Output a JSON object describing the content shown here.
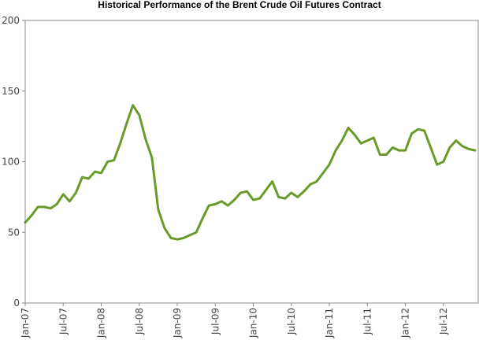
{
  "chart_data": {
    "type": "line",
    "title": "Historical Performance of the Brent Crude Oil Futures Contract",
    "xlabel": "",
    "ylabel": "",
    "ylim": [
      0,
      200
    ],
    "xlim": [
      "2007-01",
      "2012-12"
    ],
    "grid": false,
    "legend": "none",
    "y_ticks": [
      "0",
      "50",
      "100",
      "150",
      "200"
    ],
    "x_ticks": [
      {
        "label": "Jan-07",
        "date": "2007-01"
      },
      {
        "label": "Jul-07",
        "date": "2007-07"
      },
      {
        "label": "Jan-08",
        "date": "2008-01"
      },
      {
        "label": "Jul-08",
        "date": "2008-07"
      },
      {
        "label": "Jan-09",
        "date": "2009-01"
      },
      {
        "label": "Jul-09",
        "date": "2009-07"
      },
      {
        "label": "Jan-10",
        "date": "2010-01"
      },
      {
        "label": "Jul-10",
        "date": "2010-07"
      },
      {
        "label": "Jan-11",
        "date": "2011-01"
      },
      {
        "label": "Jul-11",
        "date": "2011-07"
      },
      {
        "label": "Jan-12",
        "date": "2012-01"
      },
      {
        "label": "Jul-12",
        "date": "2012-07"
      }
    ],
    "series": [
      {
        "name": "",
        "color": "#6a9a2a",
        "points": [
          [
            "2007-01",
            57
          ],
          [
            "2007-02",
            62
          ],
          [
            "2007-03",
            68
          ],
          [
            "2007-04",
            68
          ],
          [
            "2007-05",
            67
          ],
          [
            "2007-06",
            70
          ],
          [
            "2007-07",
            77
          ],
          [
            "2007-08",
            72
          ],
          [
            "2007-09",
            78
          ],
          [
            "2007-10",
            89
          ],
          [
            "2007-11",
            88
          ],
          [
            "2007-12",
            93
          ],
          [
            "2008-01",
            92
          ],
          [
            "2008-02",
            100
          ],
          [
            "2008-03",
            101
          ],
          [
            "2008-04",
            113
          ],
          [
            "2008-05",
            127
          ],
          [
            "2008-06",
            140
          ],
          [
            "2008-07",
            133
          ],
          [
            "2008-08",
            116
          ],
          [
            "2008-09",
            103
          ],
          [
            "2008-10",
            66
          ],
          [
            "2008-11",
            53
          ],
          [
            "2008-12",
            46
          ],
          [
            "2009-01",
            45
          ],
          [
            "2009-02",
            46
          ],
          [
            "2009-03",
            48
          ],
          [
            "2009-04",
            50
          ],
          [
            "2009-05",
            60
          ],
          [
            "2009-06",
            69
          ],
          [
            "2009-07",
            70
          ],
          [
            "2009-08",
            72
          ],
          [
            "2009-09",
            69
          ],
          [
            "2009-10",
            73
          ],
          [
            "2009-11",
            78
          ],
          [
            "2009-12",
            79
          ],
          [
            "2010-01",
            73
          ],
          [
            "2010-02",
            74
          ],
          [
            "2010-03",
            80
          ],
          [
            "2010-04",
            86
          ],
          [
            "2010-05",
            75
          ],
          [
            "2010-06",
            74
          ],
          [
            "2010-07",
            78
          ],
          [
            "2010-08",
            75
          ],
          [
            "2010-09",
            79
          ],
          [
            "2010-10",
            84
          ],
          [
            "2010-11",
            86
          ],
          [
            "2010-12",
            92
          ],
          [
            "2011-01",
            98
          ],
          [
            "2011-02",
            108
          ],
          [
            "2011-03",
            115
          ],
          [
            "2011-04",
            124
          ],
          [
            "2011-05",
            119
          ],
          [
            "2011-06",
            113
          ],
          [
            "2011-07",
            115
          ],
          [
            "2011-08",
            117
          ],
          [
            "2011-09",
            105
          ],
          [
            "2011-10",
            105
          ],
          [
            "2011-11",
            110
          ],
          [
            "2011-12",
            108
          ],
          [
            "2012-01",
            108
          ],
          [
            "2012-02",
            120
          ],
          [
            "2012-03",
            123
          ],
          [
            "2012-04",
            122
          ],
          [
            "2012-05",
            110
          ],
          [
            "2012-06",
            98
          ],
          [
            "2012-07",
            100
          ],
          [
            "2012-08",
            110
          ],
          [
            "2012-09",
            115
          ],
          [
            "2012-10",
            111
          ],
          [
            "2012-11",
            109
          ],
          [
            "2012-12",
            108
          ]
        ]
      }
    ]
  }
}
